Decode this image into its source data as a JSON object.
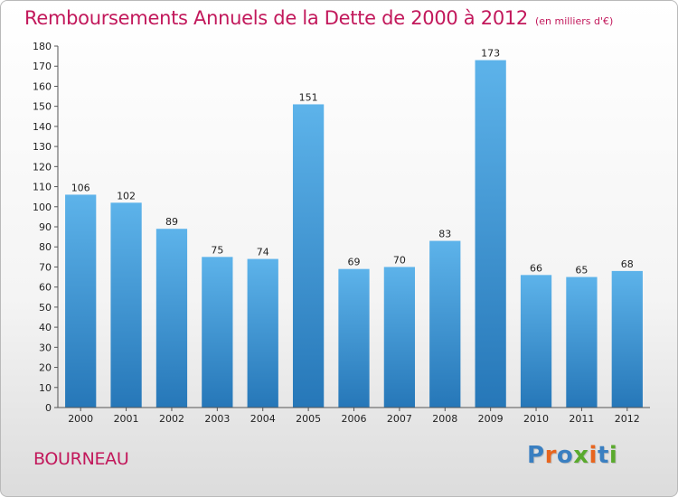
{
  "header": {
    "title": "Remboursements Annuels de la Dette de 2000 à 2012",
    "subtitle": "(en milliers d'€)"
  },
  "footer": {
    "commune": "BOURNEAU",
    "logo_text": "Proxiti",
    "logo_colors": [
      "#3a7fc1",
      "#e8651e",
      "#3a7fc1",
      "#5aaa2e",
      "#e8651e",
      "#3a7fc1",
      "#5aaa2e"
    ]
  },
  "colors": {
    "title": "#c2185b",
    "bar_top": "#5db3ea",
    "bar_bottom": "#2677b8"
  },
  "chart_data": {
    "type": "bar",
    "title": "Remboursements Annuels de la Dette de 2000 à 2012",
    "subtitle": "(en milliers d'€)",
    "categories": [
      "2000",
      "2001",
      "2002",
      "2003",
      "2004",
      "2005",
      "2006",
      "2007",
      "2008",
      "2009",
      "2010",
      "2011",
      "2012"
    ],
    "values": [
      106,
      102,
      89,
      75,
      74,
      151,
      69,
      70,
      83,
      173,
      66,
      65,
      68
    ],
    "ylim": [
      0,
      180
    ],
    "ytick_step": 10,
    "grid": false,
    "legend": "none"
  }
}
